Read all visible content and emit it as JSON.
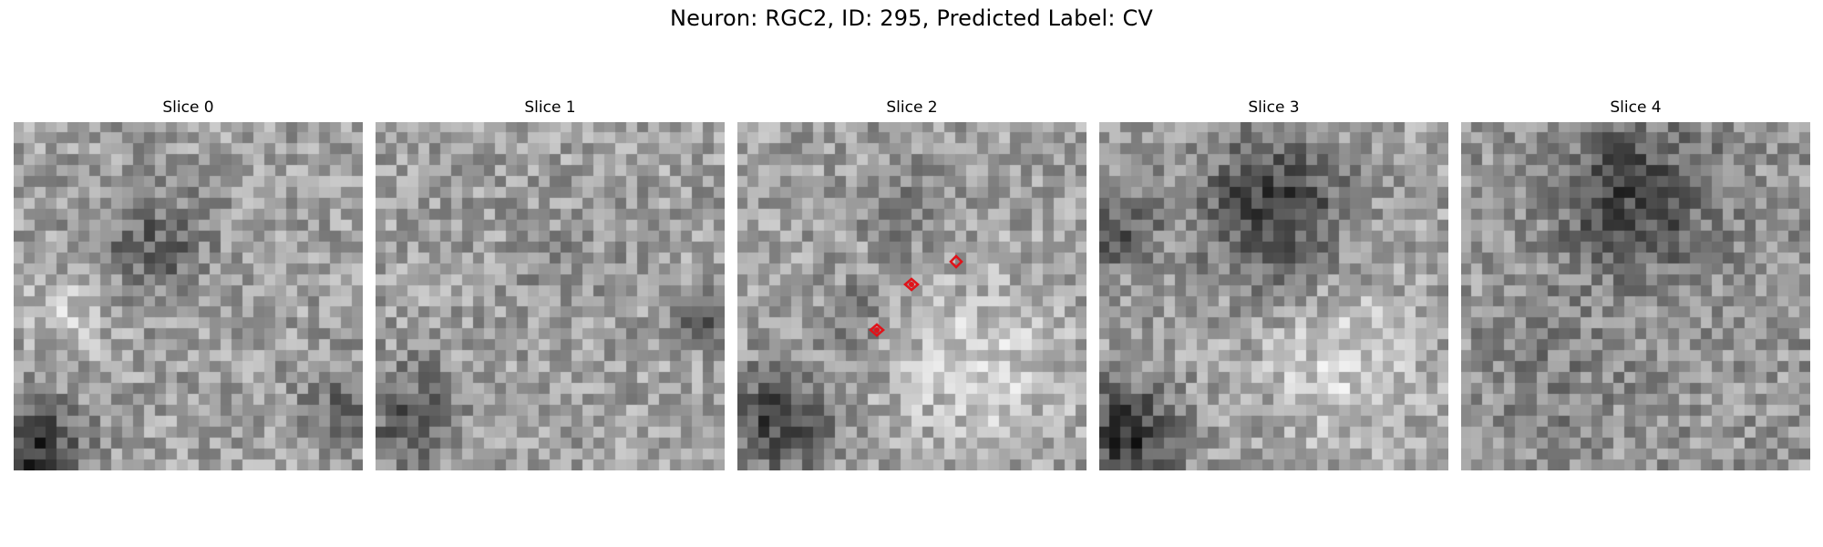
{
  "figure": {
    "title": "Neuron: RGC2, ID: 295, Predicted Label: CV"
  },
  "panels": [
    {
      "title": "Slice 0"
    },
    {
      "title": "Slice 1"
    },
    {
      "title": "Slice 2"
    },
    {
      "title": "Slice 3"
    },
    {
      "title": "Slice 4"
    }
  ],
  "marker_color": "#e0131a",
  "colormap": "gray"
}
